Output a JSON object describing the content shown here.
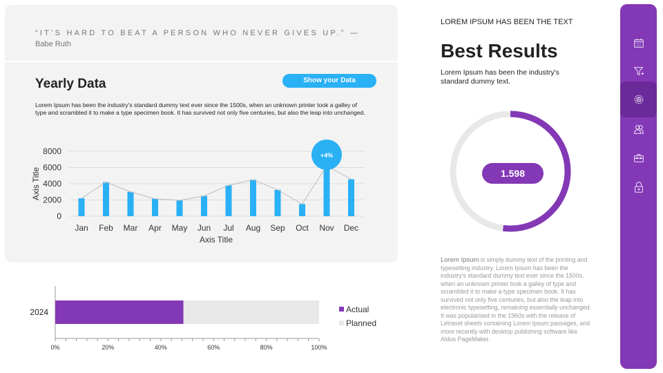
{
  "quote": {
    "text": "“IT’S HARD TO BEAT A PERSON WHO NEVER GIVES UP.” —",
    "author": "Babe Ruth"
  },
  "yearly": {
    "title": "Yearly Data",
    "button": "Show your Data",
    "description": "Lorem Ipsum has been the industry's standard dummy text ever since the 1500s, when an unknown printer took a galley of type and scrambled it to make a type specimen book. It has survived not only five centuries, but also the leap into unchanged."
  },
  "right": {
    "heading": "LOREM IPSUM HAS BEEN THE TEXT",
    "title": "Best Results",
    "subtitle": "Lorem Ipsum has been the industry's standard dummy text.",
    "donut_value": "1.598",
    "donut_percent": 52,
    "body_lead": "Lorem Ipsum",
    "body": " is simply dummy text of the printing and typesetting industry. Lorem Ipsum has been the industry's standard dummy text ever since the 1500s, when an unknown printer took a galley of type and scrambled it to make a type specimen book. It has survived not only five centuries, but also the leap into electronic typesetting, remaining essentially unchanged. It was popularised in the 1960s with the release of Letraset sheets containing Lorem Ipsum passages, and more recently with desktop publishing software like Aldus PageMaker."
  },
  "sidebar": {
    "items": [
      {
        "icon": "calendar-icon"
      },
      {
        "icon": "filter-add-icon"
      },
      {
        "icon": "settings-icon",
        "active": true
      },
      {
        "icon": "users-icon"
      },
      {
        "icon": "briefcase-icon"
      },
      {
        "icon": "lock-icon"
      }
    ]
  },
  "colors": {
    "accent_blue": "#29b0f5",
    "accent_purple": "#8338b5",
    "planned": "#e8e8e8"
  },
  "chart_data": [
    {
      "type": "bar",
      "categories": [
        "Jan",
        "Feb",
        "Mar",
        "Apr",
        "May",
        "Jun",
        "Jul",
        "Aug",
        "Sep",
        "Oct",
        "Nov",
        "Dec"
      ],
      "values": [
        2200,
        4200,
        3000,
        2150,
        1950,
        2500,
        3800,
        4500,
        3250,
        1500,
        6200,
        4550
      ],
      "xlabel": "Axis Title",
      "ylabel": "Axis Title",
      "ylim": [
        0,
        8000
      ],
      "yticks": [
        "0",
        "2000",
        "4000",
        "6000",
        "8000"
      ],
      "overlay_line": true,
      "grid": true,
      "annotation": {
        "category": "Nov",
        "label": "+4%"
      }
    },
    {
      "type": "bar",
      "orientation": "horizontal",
      "stacked": true,
      "categories": [
        "2024"
      ],
      "series": [
        {
          "name": "Actual",
          "values": [
            48.6
          ]
        },
        {
          "name": "Planned",
          "values": [
            51.4
          ]
        }
      ],
      "xticks": [
        "0%",
        "20%",
        "40%",
        "60%",
        "80%",
        "100%"
      ],
      "xlim": [
        0,
        100
      ],
      "legend": "right"
    }
  ]
}
